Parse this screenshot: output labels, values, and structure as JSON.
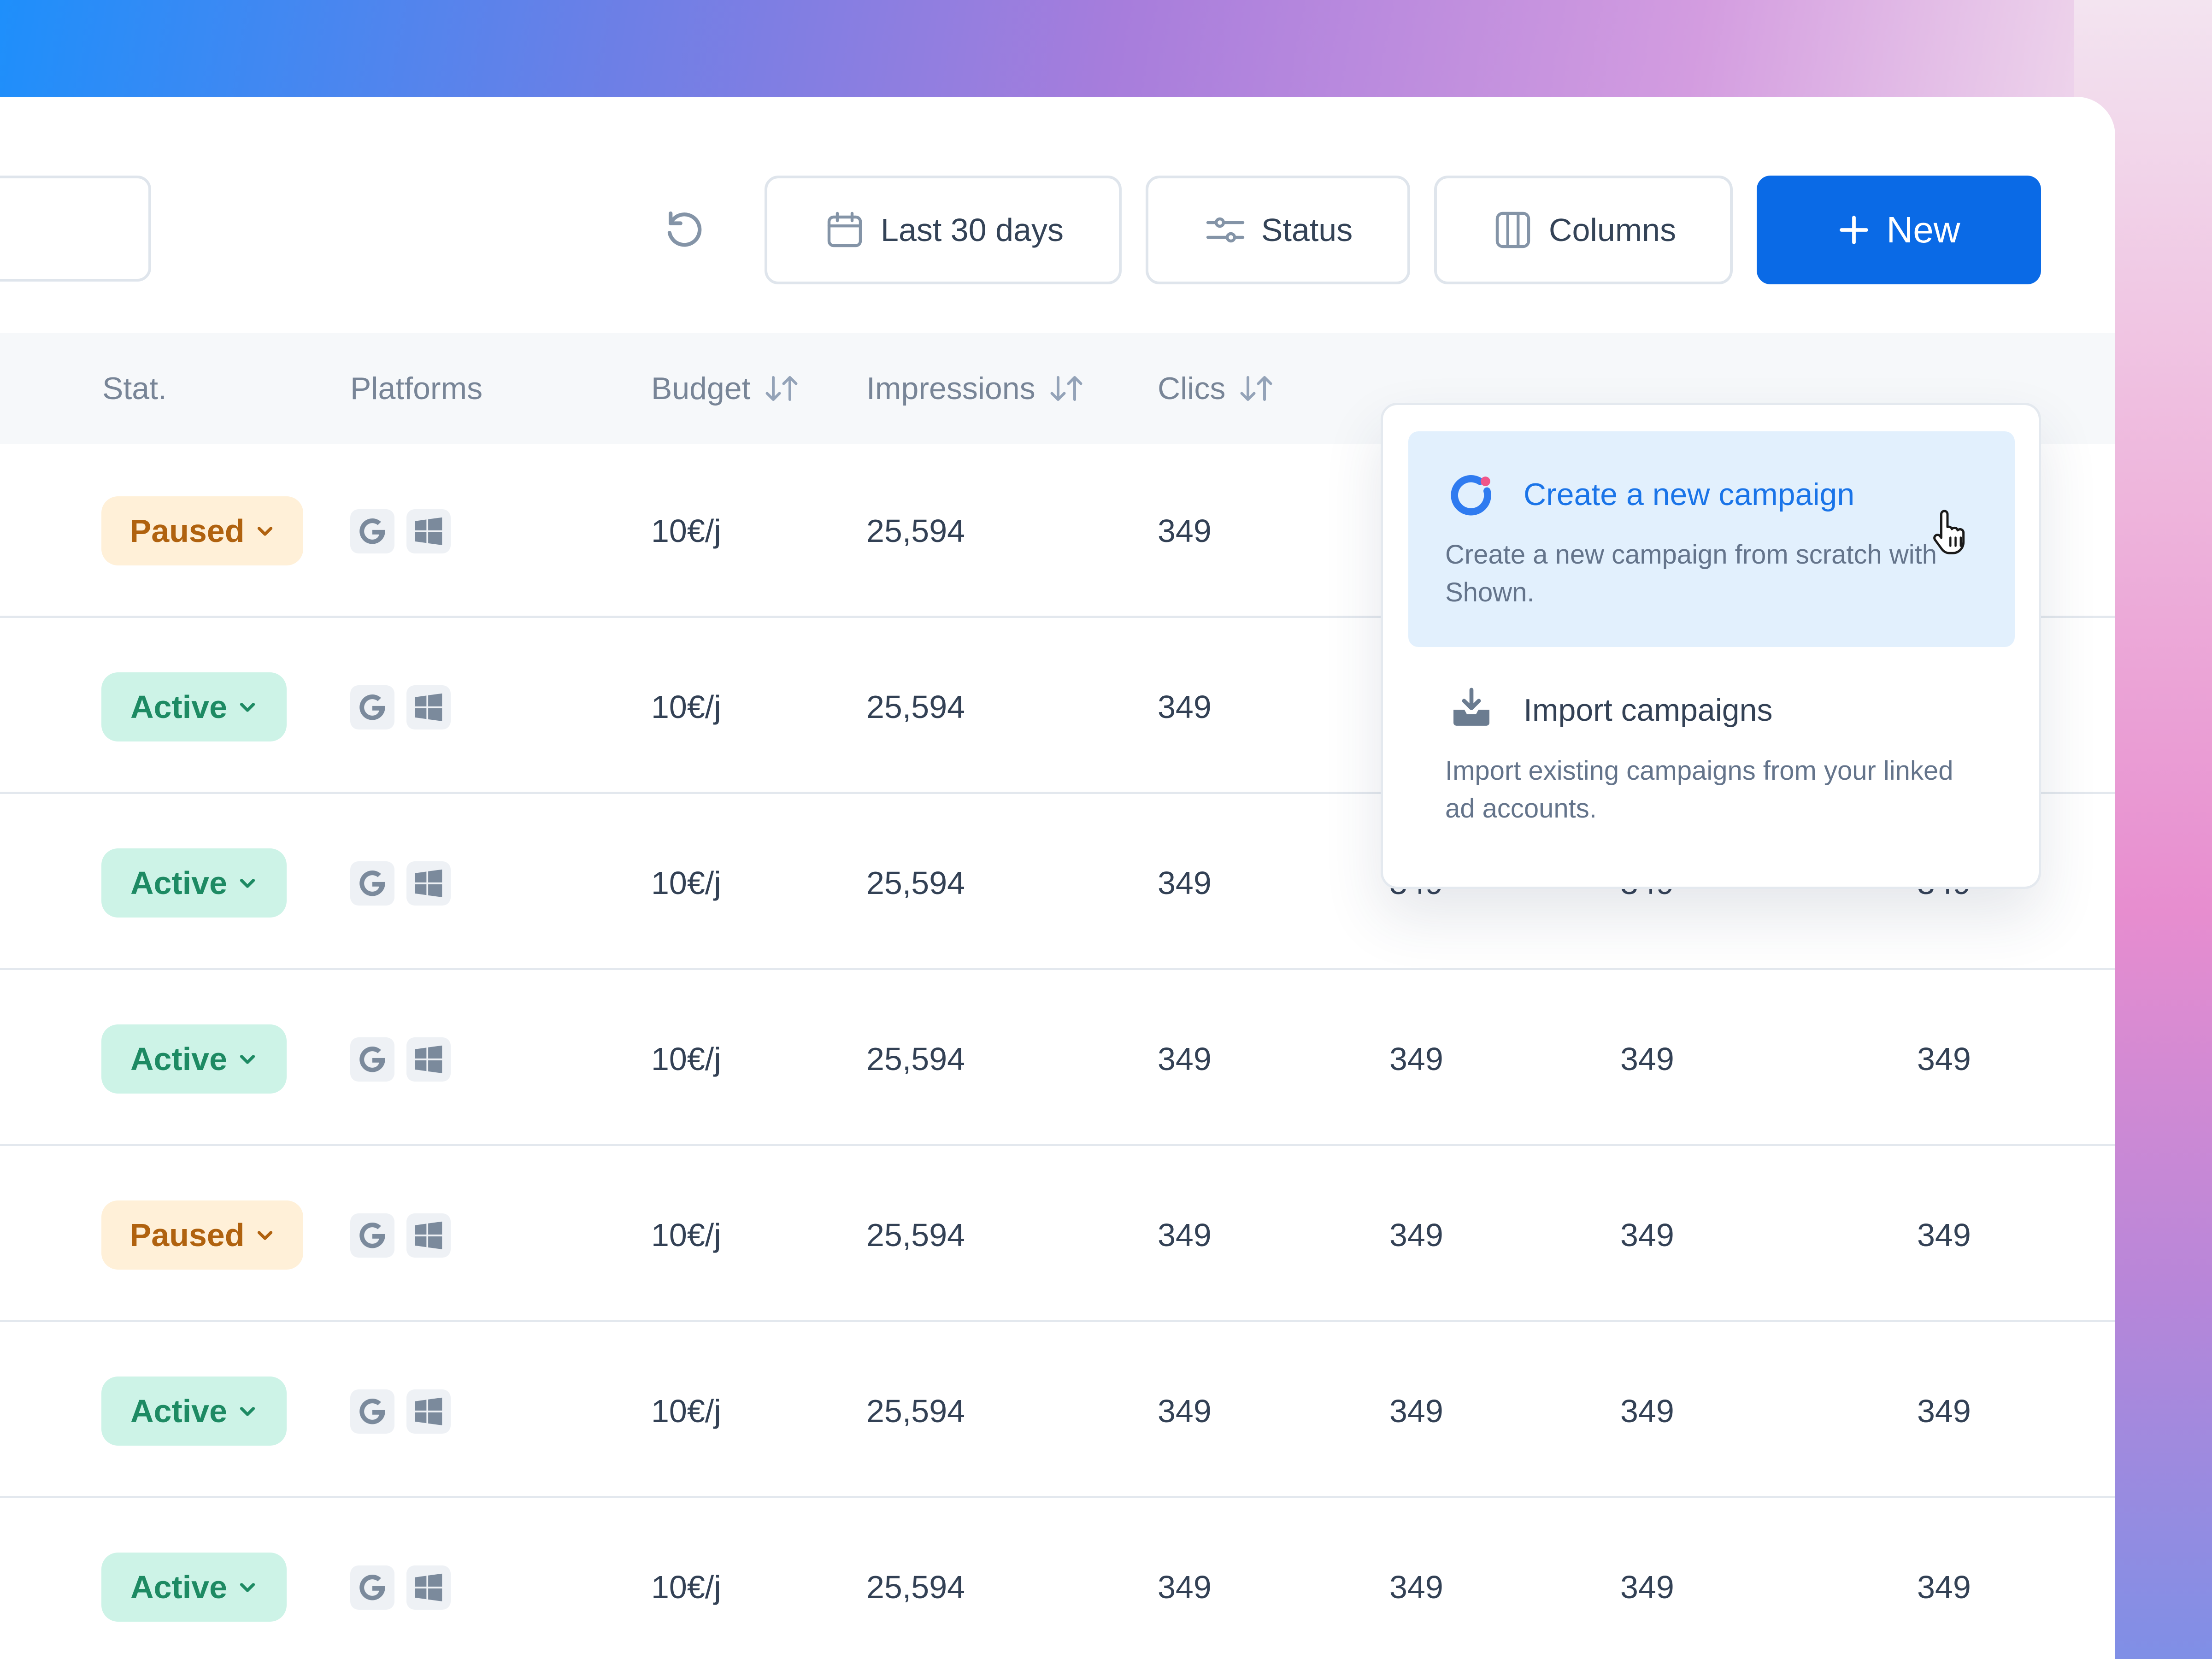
{
  "toolbar": {
    "date_range_label": "Last 30 days",
    "status_label": "Status",
    "columns_label": "Columns",
    "new_label": "New"
  },
  "table": {
    "headers": {
      "status": "Stat.",
      "platforms": "Platforms",
      "budget": "Budget",
      "impressions": "Impressions",
      "clicks": "Clics"
    },
    "rows": [
      {
        "status": "Paused",
        "budget": "10€/j",
        "impressions": "25,594",
        "clicks": "349",
        "col5": "",
        "col6": "",
        "col7": ""
      },
      {
        "status": "Active",
        "budget": "10€/j",
        "impressions": "25,594",
        "clicks": "349",
        "col5": "",
        "col6": "",
        "col7": ""
      },
      {
        "status": "Active",
        "budget": "10€/j",
        "impressions": "25,594",
        "clicks": "349",
        "col5": "349",
        "col6": "349",
        "col7": "349"
      },
      {
        "status": "Active",
        "budget": "10€/j",
        "impressions": "25,594",
        "clicks": "349",
        "col5": "349",
        "col6": "349",
        "col7": "349"
      },
      {
        "status": "Paused",
        "budget": "10€/j",
        "impressions": "25,594",
        "clicks": "349",
        "col5": "349",
        "col6": "349",
        "col7": "349"
      },
      {
        "status": "Active",
        "budget": "10€/j",
        "impressions": "25,594",
        "clicks": "349",
        "col5": "349",
        "col6": "349",
        "col7": "349"
      },
      {
        "status": "Active",
        "budget": "10€/j",
        "impressions": "25,594",
        "clicks": "349",
        "col5": "349",
        "col6": "349",
        "col7": "349"
      }
    ]
  },
  "dropdown": {
    "create": {
      "title": "Create a new campaign",
      "description": "Create a new campaign from scratch with Shown."
    },
    "import": {
      "title": "Import campaigns",
      "description": "Import existing campaigns from your linked ad accounts."
    }
  },
  "colors": {
    "primary": "#0A6AE6",
    "active_bg": "#CDF3E7",
    "active_text": "#1D8A63",
    "paused_bg": "#FFF0D8",
    "paused_text": "#B0620F",
    "highlight_bg": "#E2F0FD"
  },
  "icons": [
    "refresh-icon",
    "calendar-icon",
    "sliders-icon",
    "columns-icon",
    "plus-icon",
    "sort-icon",
    "chevron-down-icon",
    "google-icon",
    "windows-icon",
    "shown-logo-icon",
    "download-tray-icon",
    "hand-pointer-cursor"
  ]
}
